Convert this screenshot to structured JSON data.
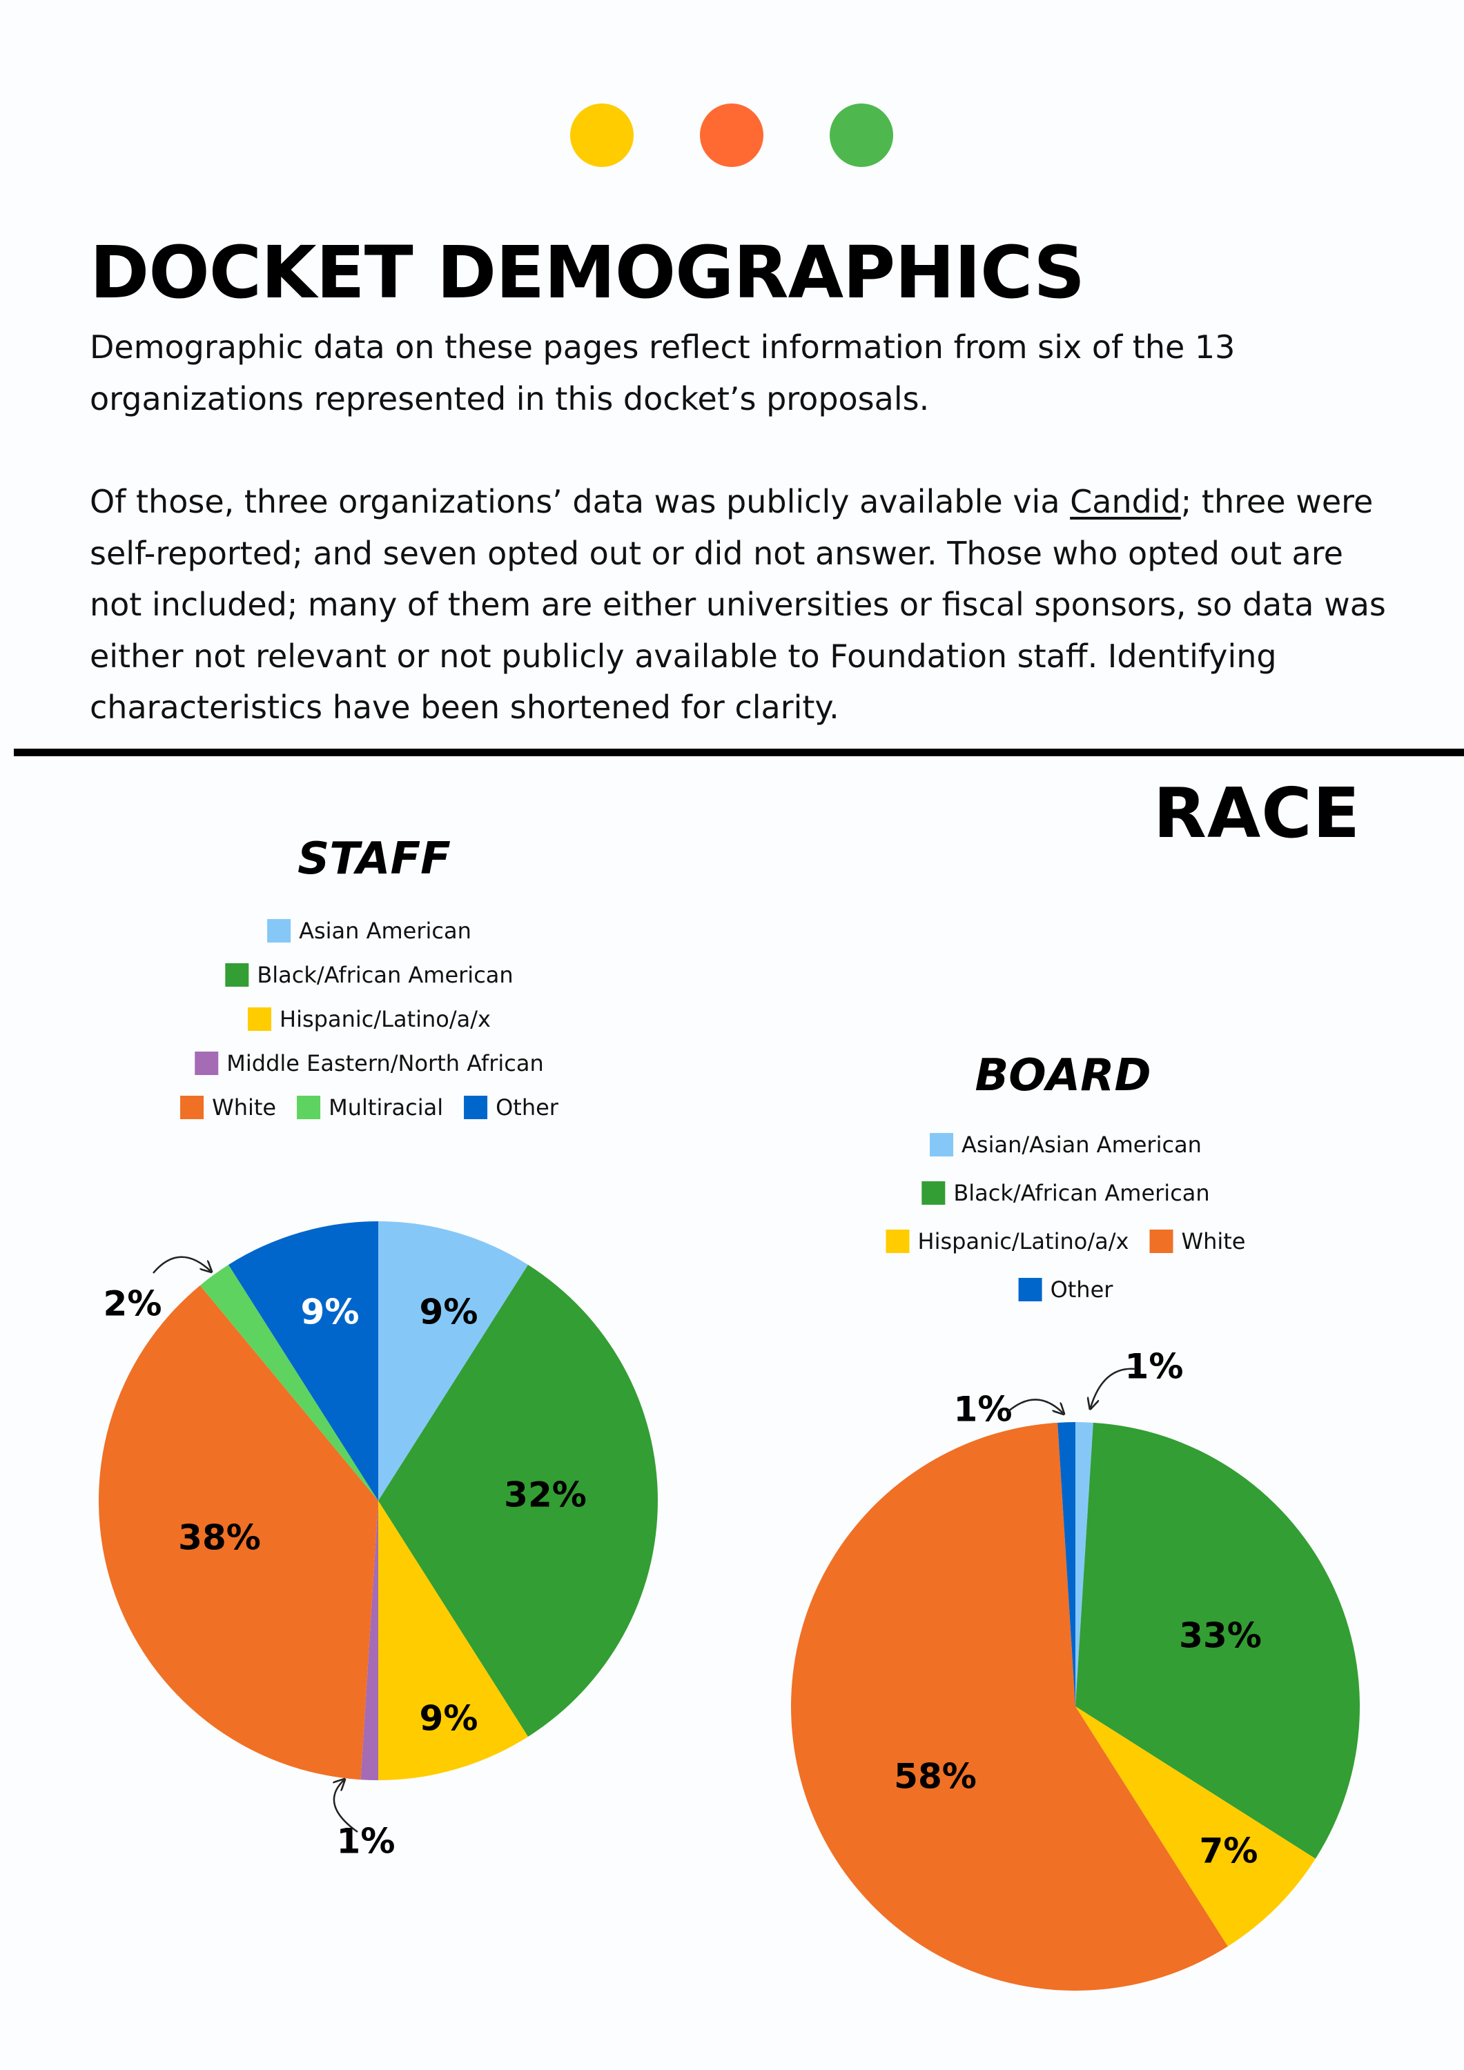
{
  "header": {
    "dots": [
      "#ffcc00",
      "#ff6a33",
      "#4eb84e"
    ],
    "title": "DOCKET DEMOGRAPHICS",
    "paragraph1": "Demographic data on these pages reflect information from six of the 13 organizations represented in this docket’s proposals.",
    "paragraph2_before": "Of those, three organizations’ data was publicly available via ",
    "paragraph2_link": "Candid",
    "paragraph2_after": "; three were self-reported; and seven opted out or did not answer. Those who opted out are not included; many of them are either universities or fiscal sponsors, so data was either not relevant or not publicly available to Foundation staff. Identifying characteristics have been shortened for clarity."
  },
  "section_title": "RACE",
  "colors": {
    "asian": "#85c8f7",
    "black": "#339e33",
    "hispanic": "#ffcc00",
    "mena": "#a56bb5",
    "white": "#f07025",
    "multiracial": "#5fd35f",
    "other": "#0066cc"
  },
  "legends": {
    "staff": [
      [
        "Asian American"
      ],
      [
        "Black/African American"
      ],
      [
        "Hispanic/Latino/a/x"
      ],
      [
        "Middle Eastern/North African"
      ],
      [
        "White",
        "Multiracial",
        "Other"
      ]
    ],
    "board": [
      [
        "Asian/Asian American"
      ],
      [
        "Black/African American"
      ],
      [
        "Hispanic/Latino/a/x",
        "White"
      ],
      [
        "Other"
      ]
    ]
  },
  "chart_data": [
    {
      "type": "pie",
      "title": "STAFF",
      "series": [
        {
          "name": "Asian American",
          "value": 9,
          "label": "9%"
        },
        {
          "name": "Black/African American",
          "value": 32,
          "label": "32%"
        },
        {
          "name": "Hispanic/Latino/a/x",
          "value": 9,
          "label": "9%"
        },
        {
          "name": "Middle Eastern/North African",
          "value": 1,
          "label": "1%"
        },
        {
          "name": "White",
          "value": 38,
          "label": "38%"
        },
        {
          "name": "Multiracial",
          "value": 2,
          "label": "2%"
        },
        {
          "name": "Other",
          "value": 9,
          "label": "9%"
        }
      ]
    },
    {
      "type": "pie",
      "title": "BOARD",
      "series": [
        {
          "name": "Asian/Asian American",
          "value": 1,
          "label": "1%"
        },
        {
          "name": "Black/African American",
          "value": 33,
          "label": "33%"
        },
        {
          "name": "Hispanic/Latino/a/x",
          "value": 7,
          "label": "7%"
        },
        {
          "name": "White",
          "value": 58,
          "label": "58%"
        },
        {
          "name": "Other",
          "value": 1,
          "label": "1%"
        }
      ]
    }
  ]
}
